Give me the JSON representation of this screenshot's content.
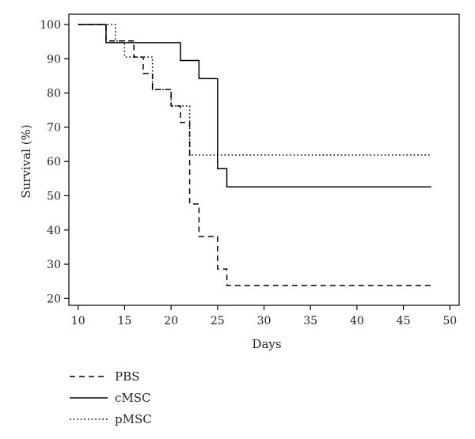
{
  "chart_data": {
    "type": "line",
    "subtype": "kaplan-meier-step",
    "title": "",
    "xlabel": "Days",
    "ylabel": "Survival (%)",
    "xlim": [
      9,
      51
    ],
    "ylim": [
      18,
      103
    ],
    "x_ticks": [
      10,
      15,
      20,
      25,
      30,
      35,
      40,
      45,
      50
    ],
    "y_ticks": [
      20,
      30,
      40,
      50,
      60,
      70,
      80,
      90,
      100
    ],
    "grid": false,
    "legend_position": "bottom-left, below plot",
    "series": [
      {
        "name": "PBS",
        "line_style": "dashed",
        "color": "#000000",
        "steps": [
          [
            10,
            100
          ],
          [
            13,
            95.2
          ],
          [
            16,
            90.5
          ],
          [
            17,
            85.7
          ],
          [
            18,
            81
          ],
          [
            20,
            76.2
          ],
          [
            21,
            71.4
          ],
          [
            22,
            47.6
          ],
          [
            23,
            38.1
          ],
          [
            25,
            28.6
          ],
          [
            26,
            23.8
          ],
          [
            48,
            23.8
          ]
        ]
      },
      {
        "name": "cMSC",
        "line_style": "solid",
        "color": "#000000",
        "steps": [
          [
            10,
            100
          ],
          [
            13,
            94.7
          ],
          [
            21,
            89.5
          ],
          [
            23,
            84.2
          ],
          [
            25,
            57.9
          ],
          [
            26,
            52.6
          ],
          [
            48,
            52.6
          ]
        ]
      },
      {
        "name": "pMSC",
        "line_style": "dotted",
        "color": "#000000",
        "steps": [
          [
            10,
            100
          ],
          [
            14,
            95.2
          ],
          [
            15,
            90.5
          ],
          [
            18,
            81
          ],
          [
            20,
            76.2
          ],
          [
            22,
            61.9
          ],
          [
            48,
            61.9
          ]
        ]
      }
    ]
  }
}
